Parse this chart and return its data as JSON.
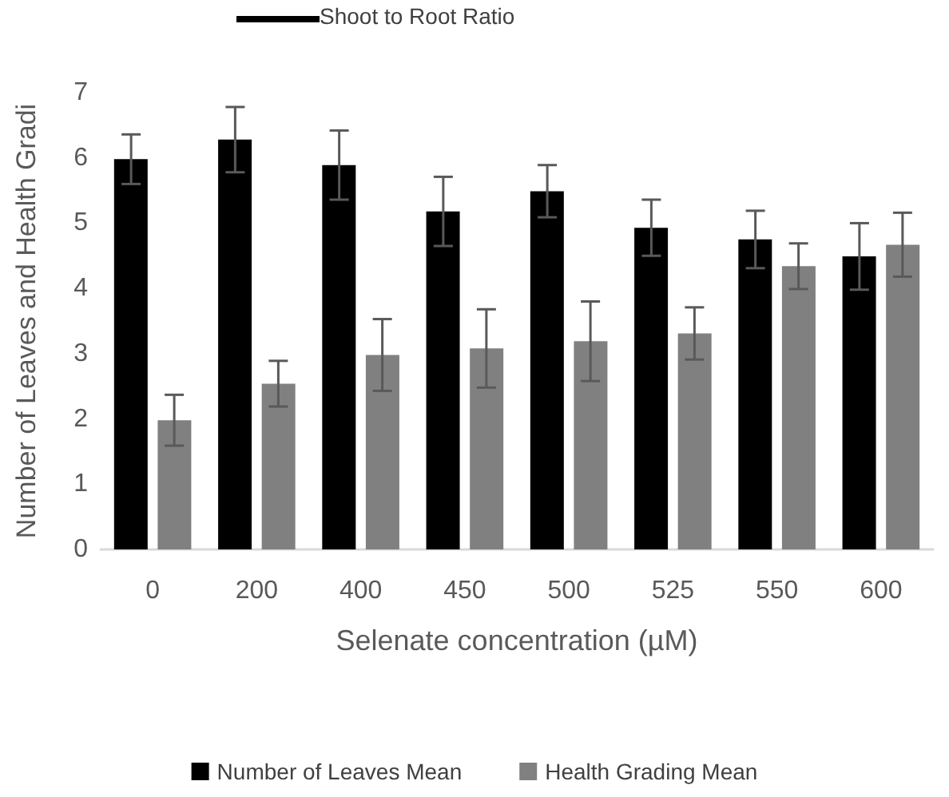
{
  "chart_data": {
    "type": "bar",
    "xlabel": "Selenate concentration (µM)",
    "ylabel": "Number of Leaves and Health Gradi",
    "categories": [
      "0",
      "200",
      "400",
      "450",
      "500",
      "525",
      "550",
      "600"
    ],
    "series": [
      {
        "name": "Number of Leaves Mean",
        "color": "#000000",
        "values": [
          5.98,
          6.28,
          5.89,
          5.18,
          5.49,
          4.93,
          4.75,
          4.49
        ],
        "errors": [
          0.38,
          0.5,
          0.53,
          0.53,
          0.4,
          0.43,
          0.44,
          0.51
        ]
      },
      {
        "name": "Health Grading Mean",
        "color": "#808080",
        "values": [
          1.98,
          2.54,
          2.98,
          3.08,
          3.19,
          3.31,
          4.34,
          4.67
        ],
        "errors": [
          0.39,
          0.35,
          0.55,
          0.6,
          0.61,
          0.4,
          0.35,
          0.49
        ]
      }
    ],
    "annotations": [
      "Shoot to Root Ratio"
    ],
    "ylim": [
      0,
      7
    ],
    "yticks": [
      0,
      1,
      2,
      3,
      4,
      5,
      6,
      7
    ],
    "grid": false,
    "legend": "bottom"
  }
}
